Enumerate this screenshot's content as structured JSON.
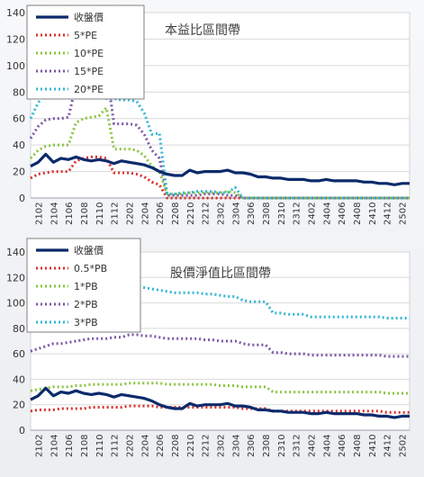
{
  "chart_data": [
    {
      "type": "line",
      "title": "本益比區間帶",
      "xlabel": "",
      "ylabel": "",
      "ylim": [
        0,
        140
      ],
      "yticks": [
        0,
        20,
        40,
        60,
        80,
        100,
        120,
        140
      ],
      "xtick_labels": [
        "2102",
        "2104",
        "2106",
        "2108",
        "2110",
        "2112",
        "2202",
        "2204",
        "2206",
        "2208",
        "2210",
        "2212",
        "2302",
        "2304",
        "2306",
        "2308",
        "2310",
        "2312",
        "2402",
        "2404",
        "2406",
        "2408",
        "2410",
        "2412",
        "2502"
      ],
      "grid": true,
      "legend_position": "top-left",
      "x": [
        "2101",
        "2102",
        "2103",
        "2104",
        "2105",
        "2106",
        "2107",
        "2108",
        "2109",
        "2110",
        "2111",
        "2112",
        "2201",
        "2202",
        "2203",
        "2204",
        "2205",
        "2206",
        "2207",
        "2208",
        "2209",
        "2210",
        "2211",
        "2212",
        "2301",
        "2302",
        "2303",
        "2304",
        "2305",
        "2306",
        "2307",
        "2308",
        "2309",
        "2310",
        "2311",
        "2312",
        "2401",
        "2402",
        "2403",
        "2404",
        "2405",
        "2406",
        "2407",
        "2408",
        "2409",
        "2410",
        "2411",
        "2412",
        "2501",
        "2502",
        "2503"
      ],
      "series": [
        {
          "name": "收盤價",
          "color": "#0b2a6b",
          "dashed": false,
          "values": [
            24,
            27,
            33,
            27,
            30,
            29,
            31,
            29,
            28,
            29,
            28,
            26,
            28,
            27,
            26,
            25,
            23,
            20,
            18,
            17,
            17,
            21,
            19,
            20,
            20,
            20,
            21,
            19,
            19,
            18,
            16,
            16,
            15,
            15,
            14,
            14,
            14,
            13,
            13,
            14,
            13,
            13,
            13,
            13,
            12,
            12,
            11,
            11,
            10,
            11,
            11
          ]
        },
        {
          "name": "5*PE",
          "color": "#d8312c",
          "dashed": true,
          "values": [
            15,
            18,
            19,
            20,
            20,
            20,
            28,
            30,
            31,
            31,
            30,
            19,
            19,
            19,
            18,
            16,
            12,
            10,
            0,
            0,
            0,
            0,
            0,
            0,
            0,
            0,
            0,
            0,
            0,
            0,
            0,
            0,
            0,
            0,
            0,
            0,
            0,
            0,
            0,
            0,
            0,
            0,
            0,
            0,
            0,
            0,
            0,
            0,
            0,
            0,
            0
          ]
        },
        {
          "name": "10*PE",
          "color": "#8ac43f",
          "dashed": true,
          "values": [
            30,
            36,
            39,
            40,
            40,
            40,
            57,
            60,
            61,
            62,
            68,
            37,
            37,
            37,
            36,
            32,
            24,
            20,
            3,
            3,
            3,
            4,
            4,
            4,
            4,
            4,
            5,
            4,
            0,
            0,
            0,
            0,
            0,
            0,
            0,
            0,
            0,
            0,
            0,
            0,
            0,
            0,
            0,
            0,
            0,
            0,
            0,
            0,
            0,
            0,
            0
          ]
        },
        {
          "name": "15*PE",
          "color": "#7b57a6",
          "dashed": true,
          "values": [
            45,
            54,
            59,
            60,
            60,
            61,
            86,
            90,
            91,
            93,
            98,
            56,
            56,
            56,
            55,
            48,
            36,
            30,
            2,
            2,
            2,
            2,
            2,
            3,
            3,
            3,
            2,
            2,
            0,
            0,
            0,
            0,
            0,
            0,
            0,
            0,
            0,
            0,
            0,
            0,
            0,
            0,
            0,
            0,
            0,
            0,
            0,
            0,
            0,
            0,
            0
          ]
        },
        {
          "name": "20*PE",
          "color": "#33b5d6",
          "dashed": true,
          "values": [
            60,
            72,
            79,
            80,
            80,
            81,
            115,
            120,
            121,
            124,
            75,
            75,
            74,
            74,
            73,
            64,
            48,
            49,
            3,
            3,
            4,
            4,
            5,
            5,
            5,
            4,
            4,
            8,
            0,
            0,
            0,
            0,
            0,
            0,
            0,
            0,
            0,
            0,
            0,
            0,
            0,
            0,
            0,
            0,
            0,
            0,
            0,
            0,
            0,
            0,
            0
          ]
        }
      ]
    },
    {
      "type": "line",
      "title": "股價淨值比區間帶",
      "xlabel": "",
      "ylabel": "",
      "ylim": [
        0,
        140
      ],
      "yticks": [
        0,
        20,
        40,
        60,
        80,
        100,
        120,
        140
      ],
      "xtick_labels": [
        "2102",
        "2104",
        "2106",
        "2108",
        "2110",
        "2112",
        "2202",
        "2204",
        "2206",
        "2208",
        "2210",
        "2212",
        "2302",
        "2304",
        "2306",
        "2308",
        "2310",
        "2312",
        "2402",
        "2404",
        "2406",
        "2408",
        "2410",
        "2412",
        "2502"
      ],
      "grid": true,
      "legend_position": "top-left",
      "x": [
        "2101",
        "2102",
        "2103",
        "2104",
        "2105",
        "2106",
        "2107",
        "2108",
        "2109",
        "2110",
        "2111",
        "2112",
        "2201",
        "2202",
        "2203",
        "2204",
        "2205",
        "2206",
        "2207",
        "2208",
        "2209",
        "2210",
        "2211",
        "2212",
        "2301",
        "2302",
        "2303",
        "2304",
        "2305",
        "2306",
        "2307",
        "2308",
        "2309",
        "2310",
        "2311",
        "2312",
        "2401",
        "2402",
        "2403",
        "2404",
        "2405",
        "2406",
        "2407",
        "2408",
        "2409",
        "2410",
        "2411",
        "2412",
        "2501",
        "2502",
        "2503"
      ],
      "series": [
        {
          "name": "收盤價",
          "color": "#0b2a6b",
          "dashed": false,
          "values": [
            24,
            27,
            33,
            27,
            30,
            29,
            31,
            29,
            28,
            29,
            28,
            26,
            28,
            27,
            26,
            25,
            23,
            20,
            18,
            17,
            17,
            21,
            19,
            20,
            20,
            20,
            21,
            19,
            19,
            18,
            16,
            16,
            15,
            15,
            14,
            14,
            14,
            13,
            13,
            14,
            13,
            13,
            13,
            13,
            12,
            12,
            11,
            11,
            10,
            11,
            11
          ]
        },
        {
          "name": "0.5*PB",
          "color": "#d8312c",
          "dashed": true,
          "values": [
            15,
            16,
            16,
            16,
            17,
            17,
            17,
            17,
            18,
            18,
            18,
            18,
            18,
            19,
            19,
            19,
            19,
            18,
            18,
            18,
            18,
            18,
            18,
            18,
            18,
            18,
            18,
            18,
            17,
            17,
            17,
            17,
            15,
            15,
            15,
            15,
            15,
            15,
            15,
            15,
            15,
            15,
            15,
            15,
            15,
            15,
            15,
            14,
            14,
            14,
            14
          ]
        },
        {
          "name": "1*PB",
          "color": "#8ac43f",
          "dashed": true,
          "values": [
            31,
            32,
            33,
            34,
            34,
            34,
            35,
            35,
            36,
            36,
            36,
            36,
            36,
            37,
            37,
            37,
            37,
            37,
            36,
            36,
            36,
            36,
            36,
            36,
            36,
            35,
            35,
            35,
            34,
            34,
            34,
            34,
            30,
            30,
            30,
            30,
            30,
            30,
            30,
            30,
            30,
            30,
            30,
            30,
            30,
            30,
            30,
            29,
            29,
            29,
            29
          ]
        },
        {
          "name": "2*PB",
          "color": "#7b57a6",
          "dashed": true,
          "values": [
            62,
            64,
            66,
            68,
            68,
            69,
            70,
            71,
            72,
            72,
            72,
            73,
            73,
            75,
            75,
            74,
            74,
            73,
            72,
            72,
            72,
            72,
            72,
            71,
            71,
            70,
            70,
            70,
            68,
            67,
            67,
            67,
            61,
            61,
            60,
            60,
            60,
            59,
            59,
            59,
            59,
            59,
            59,
            59,
            59,
            59,
            59,
            58,
            58,
            58,
            58
          ]
        },
        {
          "name": "3*PB",
          "color": "#33b5d6",
          "dashed": true,
          "values": [
            93,
            96,
            99,
            102,
            103,
            104,
            106,
            107,
            108,
            108,
            109,
            110,
            110,
            112,
            113,
            112,
            111,
            110,
            109,
            108,
            108,
            108,
            108,
            107,
            107,
            106,
            105,
            105,
            102,
            101,
            101,
            101,
            92,
            92,
            91,
            91,
            91,
            89,
            89,
            89,
            89,
            89,
            89,
            89,
            89,
            89,
            89,
            88,
            88,
            88,
            88
          ]
        }
      ]
    }
  ]
}
